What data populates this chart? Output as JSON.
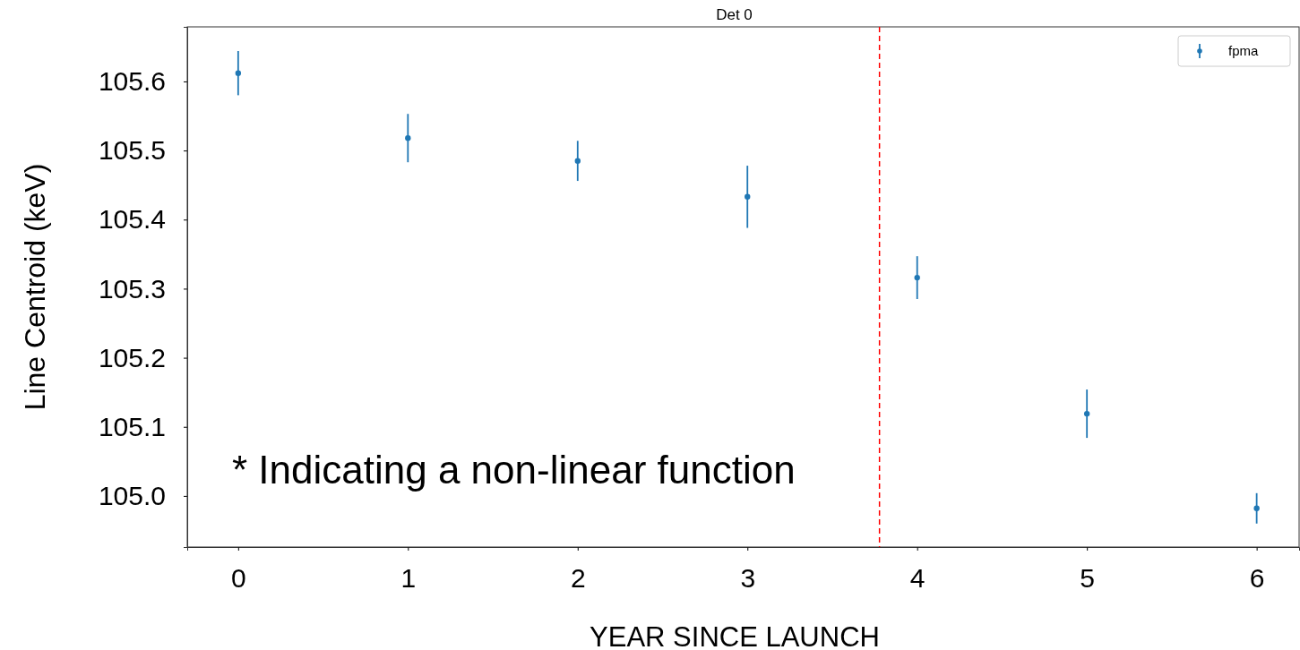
{
  "chart_data": {
    "type": "scatter",
    "title": "Det 0",
    "xlabel": "YEAR SINCE LAUNCH",
    "ylabel": "Line Centroid (keV)",
    "x": [
      0,
      1,
      2,
      3,
      4,
      5,
      6
    ],
    "series": [
      {
        "name": "fpma",
        "color": "#1f77b4",
        "values": [
          105.612,
          105.518,
          105.485,
          105.433,
          105.316,
          105.119,
          104.982
        ],
        "errors": [
          0.032,
          0.035,
          0.029,
          0.045,
          0.031,
          0.035,
          0.022
        ]
      }
    ],
    "xlim": [
      -0.3,
      6.25
    ],
    "xticks": [
      0,
      1,
      2,
      3,
      4,
      5,
      6
    ],
    "ylim": [
      104.926,
      105.679
    ],
    "yticks": [
      {
        "value": 105,
        "label": "105.0"
      },
      105.1,
      105.2,
      105.3,
      105.4,
      105.5,
      105.6
    ],
    "ref_lines": [
      {
        "axis": "x",
        "value": 3.778,
        "color": "#ff0000",
        "line_style": "dashed"
      }
    ],
    "annotations": [
      "* Indicating a non-linear function"
    ],
    "marker": "circle",
    "legend": "top right",
    "grid": false
  }
}
